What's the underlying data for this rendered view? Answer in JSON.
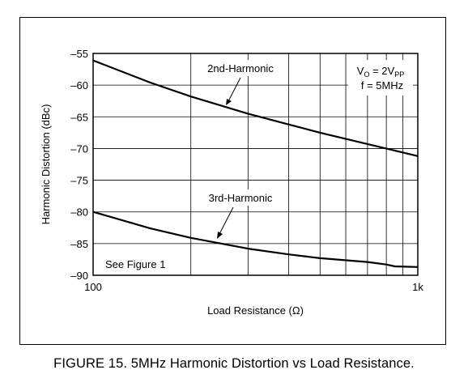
{
  "chart_data": {
    "type": "line",
    "title": "",
    "xlabel": "Load Resistance (Ω)",
    "ylabel": "Harmonic Distortion (dBc)",
    "xscale": "log",
    "xlim": [
      100,
      1000
    ],
    "ylim": [
      -90,
      -55
    ],
    "x_ticks": [
      100,
      1000
    ],
    "x_tick_labels": [
      "100",
      "1k"
    ],
    "y_ticks": [
      -55,
      -60,
      -65,
      -70,
      -75,
      -80,
      -85,
      -90
    ],
    "y_tick_labels": [
      "–55",
      "–60",
      "–65",
      "–70",
      "–75",
      "–80",
      "–85",
      "–90"
    ],
    "grid": true,
    "series": [
      {
        "name": "2nd-Harmonic",
        "x": [
          100,
          150,
          200,
          300,
          400,
          500,
          700,
          1000
        ],
        "y": [
          -56.1,
          -59.6,
          -61.8,
          -64.5,
          -66.2,
          -67.5,
          -69.3,
          -71.2
        ]
      },
      {
        "name": "3rd-Harmonic",
        "x": [
          100,
          150,
          200,
          300,
          400,
          500,
          700,
          800,
          850,
          1000
        ],
        "y": [
          -80.0,
          -82.6,
          -84.1,
          -85.8,
          -86.7,
          -87.3,
          -87.9,
          -88.3,
          -88.6,
          -88.7
        ]
      }
    ],
    "annotations": {
      "condition_vo": {
        "prefix": "V",
        "sub1": "O",
        "mid": " = 2V",
        "sub2": "PP"
      },
      "condition_f": "f = 5MHz",
      "note": "See Figure 1"
    }
  },
  "caption": "FIGURE 15. 5MHz Harmonic Distortion vs Load Resistance."
}
